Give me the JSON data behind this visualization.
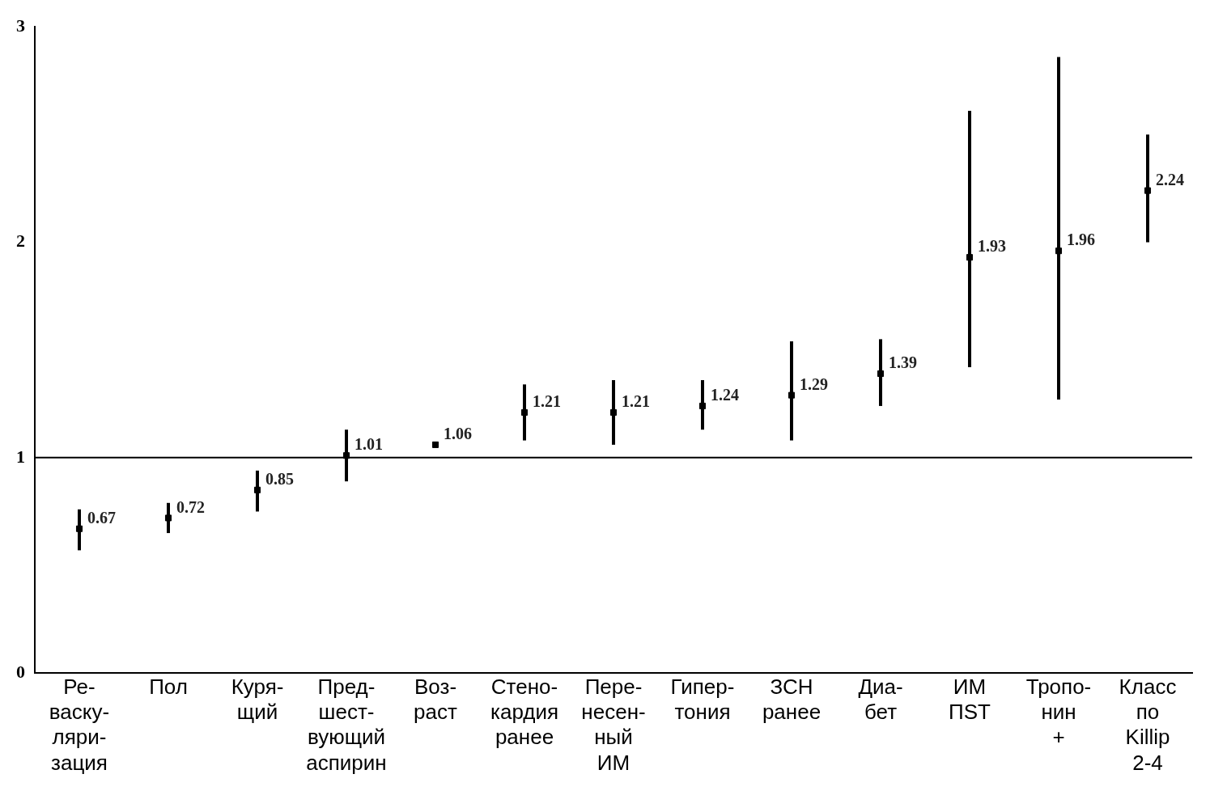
{
  "chart_data": {
    "type": "scatter",
    "categories": [
      "Ре- васку- ляри- зация",
      "Пол",
      "Куря- щий",
      "Пред- шест- вующий аспирин",
      "Воз- раст",
      "Стено- кардия ранее",
      "Пере- несен- ный ИМ",
      "Гипер- тония",
      "ЗСН ранее",
      "Диа- бет",
      "ИМ ПST",
      "Тропо- нин +",
      "Класс по Killip 2-4"
    ],
    "series": [
      {
        "color": "#000000",
        "values": [
          0.67,
          0.72,
          0.85,
          1.01,
          1.06,
          1.21,
          1.21,
          1.24,
          1.29,
          1.39,
          1.93,
          1.96,
          2.24
        ],
        "errors": [
          [
            0.57,
            0.76
          ],
          [
            0.65,
            0.79
          ],
          [
            0.75,
            0.94
          ],
          [
            0.89,
            1.13
          ],
          null,
          [
            1.08,
            1.34
          ],
          [
            1.06,
            1.36
          ],
          [
            1.13,
            1.36
          ],
          [
            1.08,
            1.54
          ],
          [
            1.24,
            1.55
          ],
          [
            1.42,
            2.61
          ],
          [
            1.27,
            2.86
          ],
          [
            2.0,
            2.5
          ]
        ]
      }
    ],
    "ylim": [
      0,
      3
    ],
    "yticks": [
      0,
      1,
      2,
      3
    ],
    "grid": false,
    "legend": false,
    "marker": "square",
    "data_labels": true,
    "ref_lines": [
      {
        "axis": "y",
        "value": 1,
        "color": "#000000"
      }
    ]
  }
}
